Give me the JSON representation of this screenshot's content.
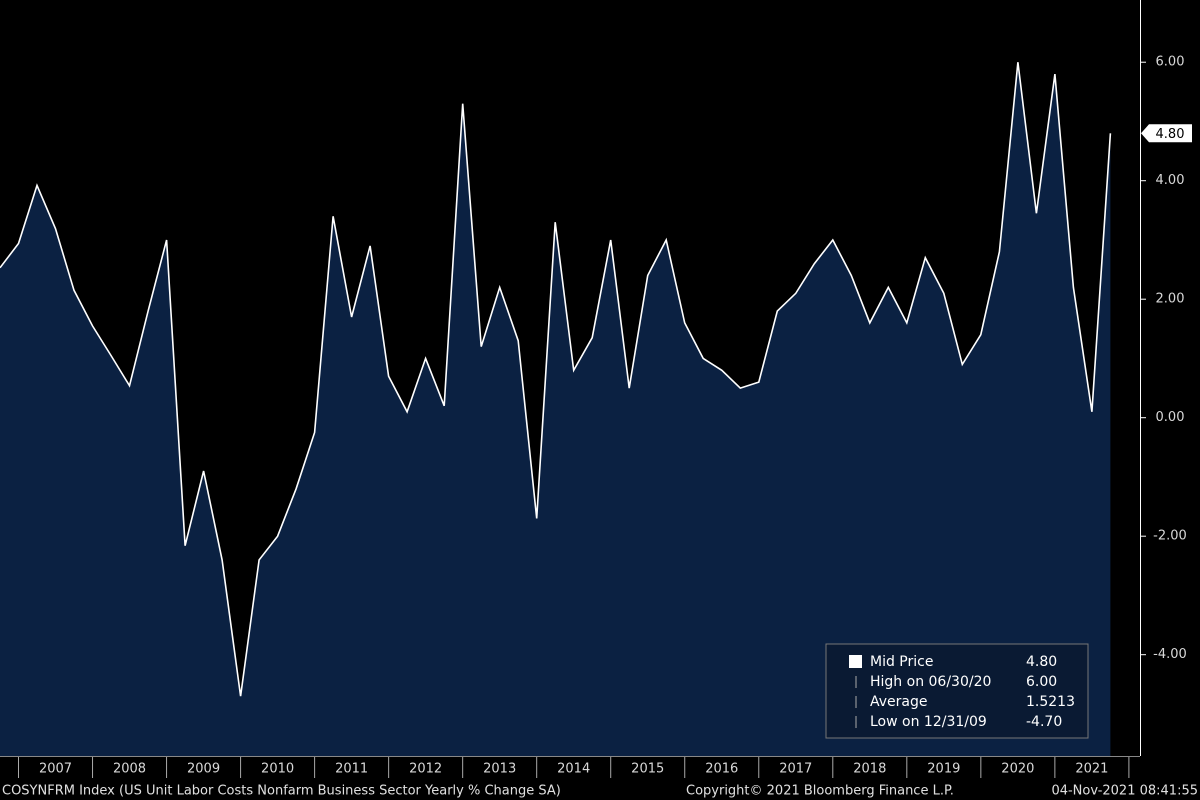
{
  "chart_data": {
    "type": "area",
    "footer": "COSYNFRM Index (US Unit Labor Costs Nonfarm Business Sector Yearly % Change SA)",
    "copyright": "Copyright© 2021 Bloomberg Finance L.P.",
    "timestamp": "04-Nov-2021 08:41:55",
    "x": [
      2006.75,
      2007.0,
      2007.25,
      2007.5,
      2007.75,
      2008.0,
      2008.25,
      2008.5,
      2008.75,
      2009.0,
      2009.25,
      2009.5,
      2009.75,
      2010.0,
      2010.25,
      2010.5,
      2010.75,
      2011.0,
      2011.25,
      2011.5,
      2011.75,
      2012.0,
      2012.25,
      2012.5,
      2012.75,
      2013.0,
      2013.25,
      2013.5,
      2013.75,
      2014.0,
      2014.25,
      2014.5,
      2014.75,
      2015.0,
      2015.25,
      2015.5,
      2015.75,
      2016.0,
      2016.25,
      2016.5,
      2016.75,
      2017.0,
      2017.25,
      2017.5,
      2017.75,
      2018.0,
      2018.25,
      2018.5,
      2018.75,
      2019.0,
      2019.25,
      2019.5,
      2019.75,
      2020.0,
      2020.25,
      2020.5,
      2020.75,
      2021.0,
      2021.25,
      2021.5,
      2021.75
    ],
    "series": [
      {
        "name": "Mid Price",
        "color": "#ffffff",
        "fill": "#0b2142",
        "values": [
          2.53,
          2.94,
          3.92,
          3.19,
          2.15,
          1.55,
          1.05,
          0.54,
          1.8,
          3.0,
          -2.16,
          -0.9,
          -2.4,
          -4.7,
          -2.4,
          -2.0,
          -1.2,
          -0.25,
          3.4,
          1.7,
          2.9,
          0.7,
          0.1,
          1.0,
          0.2,
          5.3,
          1.2,
          2.2,
          1.3,
          -1.7,
          3.3,
          0.8,
          1.35,
          3.0,
          0.5,
          2.4,
          3.0,
          1.6,
          1.0,
          0.8,
          0.5,
          0.6,
          1.8,
          2.1,
          2.6,
          3.0,
          2.4,
          1.6,
          2.2,
          1.6,
          2.7,
          2.1,
          0.9,
          1.4,
          2.8,
          6.0,
          3.45,
          5.8,
          2.2,
          0.1,
          4.8
        ]
      }
    ],
    "last_value_label": "4.80",
    "xlim": [
      2006.75,
      2022.15
    ],
    "xticks": [
      {
        "value": 2007.5,
        "label": "2007"
      },
      {
        "value": 2008.5,
        "label": "2008"
      },
      {
        "value": 2009.5,
        "label": "2009"
      },
      {
        "value": 2010.5,
        "label": "2010"
      },
      {
        "value": 2011.5,
        "label": "2011"
      },
      {
        "value": 2012.5,
        "label": "2012"
      },
      {
        "value": 2013.5,
        "label": "2013"
      },
      {
        "value": 2014.5,
        "label": "2014"
      },
      {
        "value": 2015.5,
        "label": "2015"
      },
      {
        "value": 2016.5,
        "label": "2016"
      },
      {
        "value": 2017.5,
        "label": "2017"
      },
      {
        "value": 2018.5,
        "label": "2018"
      },
      {
        "value": 2019.5,
        "label": "2019"
      },
      {
        "value": 2020.5,
        "label": "2020"
      },
      {
        "value": 2021.5,
        "label": "2021"
      }
    ],
    "ylim": [
      -5.71,
      7.05
    ],
    "yticks": [
      {
        "value": 6,
        "label": "6.00"
      },
      {
        "value": 4,
        "label": "4.00"
      },
      {
        "value": 2,
        "label": "2.00"
      },
      {
        "value": 0,
        "label": "0.00"
      },
      {
        "value": -2,
        "label": "-2.00"
      },
      {
        "value": -4,
        "label": "-4.00"
      }
    ],
    "legend": [
      {
        "label": "Mid Price",
        "value": "4.80"
      },
      {
        "label": "High on 06/30/20",
        "value": "6.00"
      },
      {
        "label": "Average",
        "value": "1.5213"
      },
      {
        "label": "Low on 12/31/09",
        "value": "-4.70"
      }
    ]
  }
}
